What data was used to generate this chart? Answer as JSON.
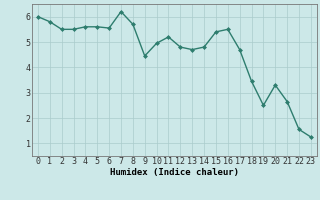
{
  "x": [
    0,
    1,
    2,
    3,
    4,
    5,
    6,
    7,
    8,
    9,
    10,
    11,
    12,
    13,
    14,
    15,
    16,
    17,
    18,
    19,
    20,
    21,
    22,
    23
  ],
  "y": [
    6.0,
    5.8,
    5.5,
    5.5,
    5.6,
    5.6,
    5.55,
    6.2,
    5.7,
    4.45,
    4.95,
    5.2,
    4.8,
    4.7,
    4.8,
    5.4,
    5.5,
    4.7,
    3.45,
    2.5,
    3.3,
    2.65,
    1.55,
    1.25
  ],
  "line_color": "#2e7d6e",
  "marker": "D",
  "marker_size": 2.0,
  "background_color": "#cce8e8",
  "grid_color": "#aacccc",
  "xlabel": "Humidex (Indice chaleur)",
  "xlim": [
    -0.5,
    23.5
  ],
  "ylim": [
    0.5,
    6.5
  ],
  "yticks": [
    1,
    2,
    3,
    4,
    5,
    6
  ],
  "xticks": [
    0,
    1,
    2,
    3,
    4,
    5,
    6,
    7,
    8,
    9,
    10,
    11,
    12,
    13,
    14,
    15,
    16,
    17,
    18,
    19,
    20,
    21,
    22,
    23
  ],
  "xlabel_fontsize": 6.5,
  "tick_fontsize": 6.0,
  "line_width": 1.0
}
